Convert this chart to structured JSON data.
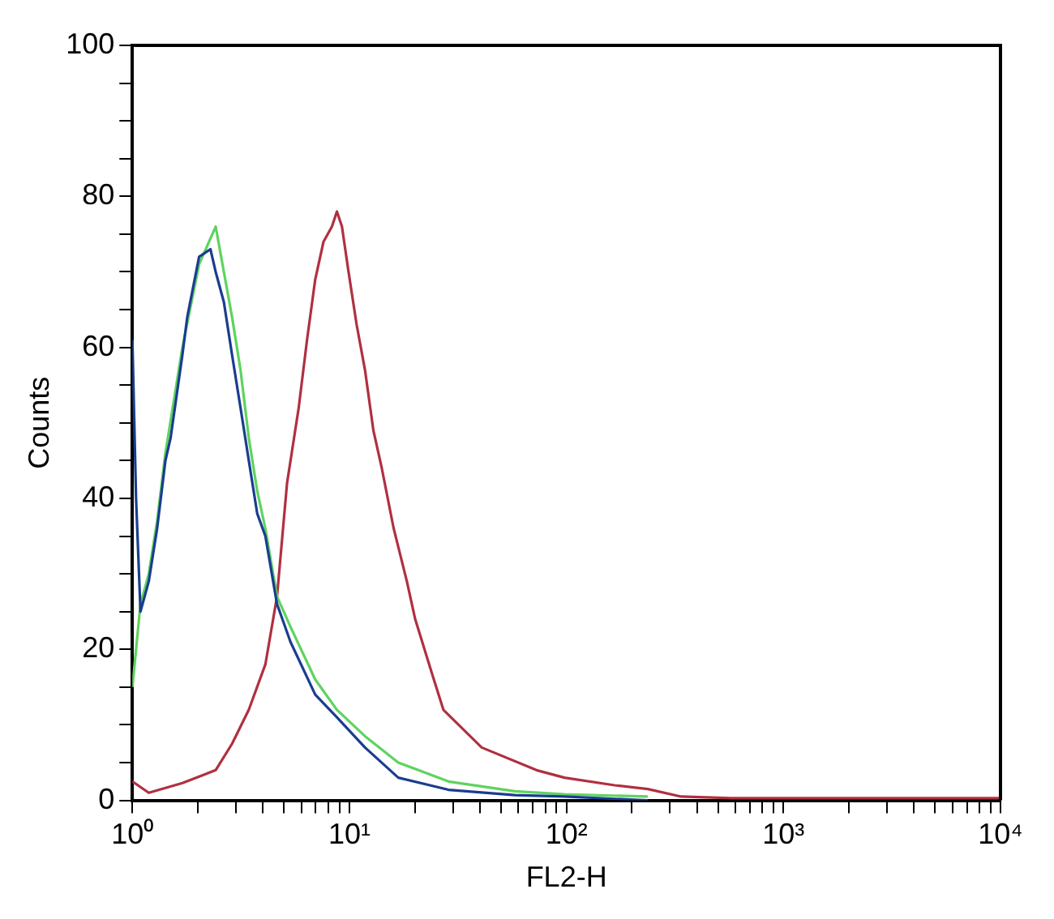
{
  "chart_data": {
    "type": "line",
    "xlabel": "FL2-H",
    "ylabel": "Counts",
    "log": "x",
    "xlim": [
      1,
      10000
    ],
    "ylim": [
      0,
      100
    ],
    "xticks": [
      {
        "value": 1,
        "label": "10⁰"
      },
      {
        "value": 2,
        "label": null
      },
      {
        "value": 3,
        "label": null
      },
      {
        "value": 4,
        "label": null
      },
      {
        "value": 5,
        "label": null
      },
      {
        "value": 6,
        "label": null
      },
      {
        "value": 7,
        "label": null
      },
      {
        "value": 8,
        "label": null
      },
      {
        "value": 9,
        "label": null
      },
      {
        "value": 10,
        "label": "10¹"
      },
      {
        "value": 20,
        "label": null
      },
      {
        "value": 30,
        "label": null
      },
      {
        "value": 40,
        "label": null
      },
      {
        "value": 50,
        "label": null
      },
      {
        "value": 60,
        "label": null
      },
      {
        "value": 70,
        "label": null
      },
      {
        "value": 80,
        "label": null
      },
      {
        "value": 90,
        "label": null
      },
      {
        "value": 100,
        "label": "10²"
      },
      {
        "value": 200,
        "label": null
      },
      {
        "value": 300,
        "label": null
      },
      {
        "value": 400,
        "label": null
      },
      {
        "value": 500,
        "label": null
      },
      {
        "value": 600,
        "label": null
      },
      {
        "value": 700,
        "label": null
      },
      {
        "value": 800,
        "label": null
      },
      {
        "value": 900,
        "label": null
      },
      {
        "value": 1000,
        "label": "10³"
      },
      {
        "value": 2000,
        "label": null
      },
      {
        "value": 3000,
        "label": null
      },
      {
        "value": 4000,
        "label": null
      },
      {
        "value": 5000,
        "label": null
      },
      {
        "value": 6000,
        "label": null
      },
      {
        "value": 7000,
        "label": null
      },
      {
        "value": 8000,
        "label": null
      },
      {
        "value": 9000,
        "label": null
      },
      {
        "value": 10000,
        "label": "10⁴"
      }
    ],
    "yticks": [
      0,
      {
        "value": 5,
        "label": null
      },
      {
        "value": 10,
        "label": null
      },
      {
        "value": 15,
        "label": null
      },
      20,
      {
        "value": 25,
        "label": null
      },
      {
        "value": 30,
        "label": null
      },
      {
        "value": 35,
        "label": null
      },
      40,
      {
        "value": 45,
        "label": null
      },
      {
        "value": 50,
        "label": null
      },
      {
        "value": 55,
        "label": null
      },
      60,
      {
        "value": 65,
        "label": null
      },
      {
        "value": 70,
        "label": null
      },
      {
        "value": 75,
        "label": null
      },
      80,
      {
        "value": 85,
        "label": null
      },
      {
        "value": 90,
        "label": null
      },
      {
        "value": 95,
        "label": null
      },
      100
    ],
    "series": [
      {
        "color": "#1a3d8f",
        "x": [
          1,
          1.04,
          1.09,
          1.19,
          1.3,
          1.42,
          1.5,
          1.7,
          1.79,
          2.03,
          2.29,
          2.42,
          2.64,
          2.88,
          3.15,
          3.44,
          3.76,
          4.1,
          4.64,
          5.35,
          6.96,
          8.76,
          11.8,
          16.8,
          28.6,
          57.9,
          98,
          237
        ],
        "values": [
          61,
          40,
          25,
          29,
          36,
          45,
          48,
          59,
          64,
          72,
          73,
          70,
          66,
          59,
          52,
          45,
          38,
          35,
          26,
          21,
          14,
          11,
          7,
          3,
          1.4,
          0.7,
          0.5,
          0
        ]
      },
      {
        "color": "#5fd35f",
        "x": [
          1,
          1.04,
          1.09,
          1.19,
          1.3,
          1.42,
          1.7,
          2.03,
          2.42,
          2.64,
          2.88,
          3.15,
          3.44,
          3.76,
          4.1,
          4.64,
          5.35,
          6.96,
          8.76,
          11.8,
          16.8,
          28.6,
          57.9,
          98,
          237
        ],
        "values": [
          15,
          20,
          26,
          30,
          37,
          46,
          60,
          71,
          76,
          70,
          64,
          57,
          48,
          41,
          36,
          27,
          23,
          16,
          12,
          8.5,
          5,
          2.5,
          1.2,
          0.8,
          0.5
        ]
      },
      {
        "color": "#b03040",
        "x": [
          1,
          1.19,
          1.7,
          2.42,
          2.88,
          3.44,
          4.1,
          4.64,
          5.16,
          5.84,
          6.38,
          6.96,
          7.6,
          8.31,
          8.76,
          9.24,
          9.91,
          10.8,
          11.8,
          12.9,
          14.1,
          16,
          18.4,
          20.1,
          23.9,
          27.1,
          40.7,
          72.8,
          98,
          167,
          237,
          338,
          574,
          10000
        ],
        "values": [
          2.5,
          1,
          2.3,
          4,
          7.5,
          12,
          18,
          27,
          42,
          52,
          61,
          69,
          74,
          76,
          78,
          76,
          70,
          63,
          57,
          49,
          44,
          36,
          29,
          24,
          17,
          12,
          7,
          4,
          3,
          2,
          1.5,
          0.5,
          0.3,
          0.3
        ]
      }
    ]
  }
}
